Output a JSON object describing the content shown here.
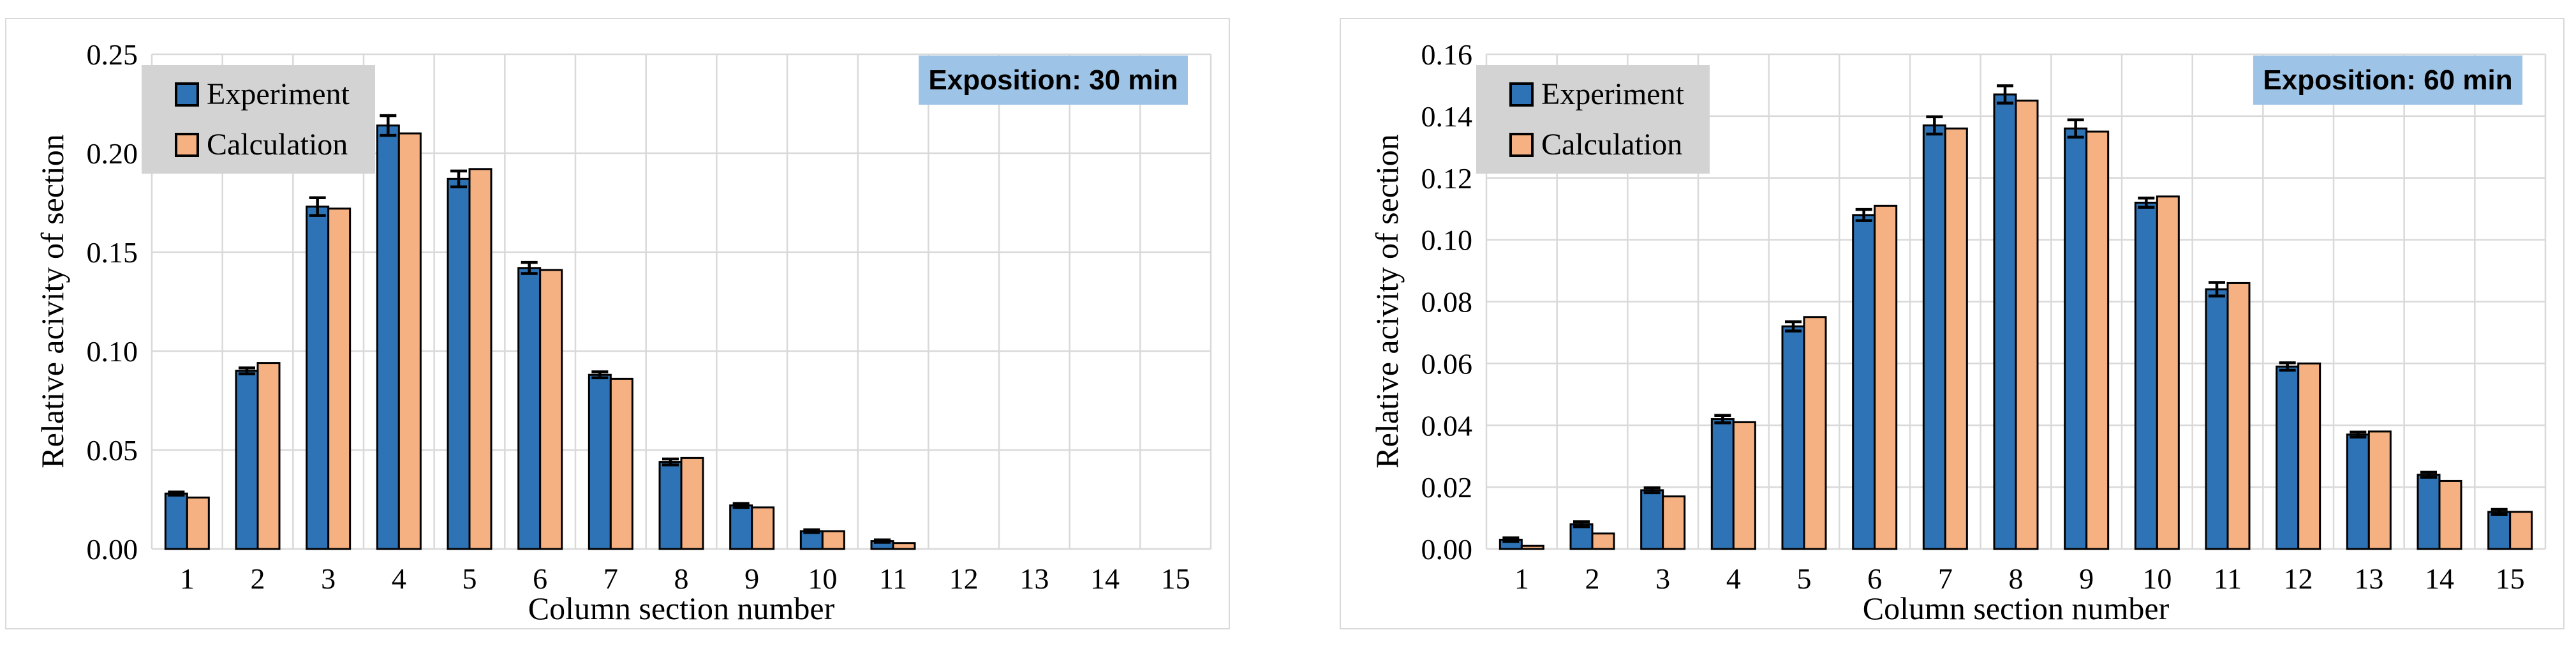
{
  "colors": {
    "experiment": "#2E73B5",
    "calculation": "#F5B182",
    "bar_outline": "#000000",
    "gridline": "#D9D9D9",
    "panel_border": "#D9D9D9",
    "legend_bg": "#D3D3D3",
    "annotation_bg": "#9DC3E6",
    "error_bar": "#000000",
    "text": "#000000",
    "background": "#FFFFFF"
  },
  "legend": {
    "items": [
      {
        "label": "Experiment",
        "color_key": "experiment"
      },
      {
        "label": "Calculation",
        "color_key": "calculation"
      }
    ]
  },
  "chart_data": [
    {
      "type": "bar",
      "annotation": "Exposition: 30 min",
      "ylabel": "Relative acivity of section",
      "xlabel": "Column section number",
      "ylim": [
        0,
        0.25
      ],
      "ytick_step": 0.05,
      "ytick_labels": [
        "0.00",
        "0.05",
        "0.10",
        "0.15",
        "0.20",
        "0.25"
      ],
      "grid": true,
      "legend_position": "top-left",
      "categories": [
        "1",
        "2",
        "3",
        "4",
        "5",
        "6",
        "7",
        "8",
        "9",
        "10",
        "11",
        "12",
        "13",
        "14",
        "15"
      ],
      "series": [
        {
          "name": "Experiment",
          "values": [
            0.028,
            0.09,
            0.173,
            0.214,
            0.187,
            0.142,
            0.088,
            0.044,
            0.022,
            0.009,
            0.004,
            0,
            0,
            0,
            0
          ],
          "errors": [
            0.0008,
            0.0015,
            0.0045,
            0.005,
            0.004,
            0.0028,
            0.0015,
            0.0015,
            0.001,
            0.0007,
            0.0006,
            0,
            0,
            0,
            0
          ]
        },
        {
          "name": "Calculation",
          "values": [
            0.026,
            0.094,
            0.172,
            0.21,
            0.192,
            0.141,
            0.086,
            0.046,
            0.021,
            0.009,
            0.003,
            0,
            0,
            0,
            0
          ]
        }
      ]
    },
    {
      "type": "bar",
      "annotation": "Exposition: 60 min",
      "ylabel": "Relative acivity of section",
      "xlabel": "Column section number",
      "ylim": [
        0,
        0.16
      ],
      "ytick_step": 0.02,
      "ytick_labels": [
        "0.00",
        "0.02",
        "0.04",
        "0.06",
        "0.08",
        "0.10",
        "0.12",
        "0.14",
        "0.16"
      ],
      "grid": true,
      "legend_position": "top-left",
      "categories": [
        "1",
        "2",
        "3",
        "4",
        "5",
        "6",
        "7",
        "8",
        "9",
        "10",
        "11",
        "12",
        "13",
        "14",
        "15"
      ],
      "series": [
        {
          "name": "Experiment",
          "values": [
            0.003,
            0.008,
            0.019,
            0.042,
            0.072,
            0.108,
            0.137,
            0.147,
            0.136,
            0.112,
            0.084,
            0.059,
            0.037,
            0.024,
            0.012
          ],
          "errors": [
            0.0006,
            0.0008,
            0.0008,
            0.0012,
            0.0015,
            0.0018,
            0.0028,
            0.0028,
            0.0028,
            0.0015,
            0.0022,
            0.0012,
            0.0008,
            0.0008,
            0.0008
          ]
        },
        {
          "name": "Calculation",
          "values": [
            0.001,
            0.005,
            0.017,
            0.041,
            0.075,
            0.111,
            0.136,
            0.145,
            0.135,
            0.114,
            0.086,
            0.06,
            0.038,
            0.022,
            0.012
          ]
        }
      ]
    }
  ]
}
